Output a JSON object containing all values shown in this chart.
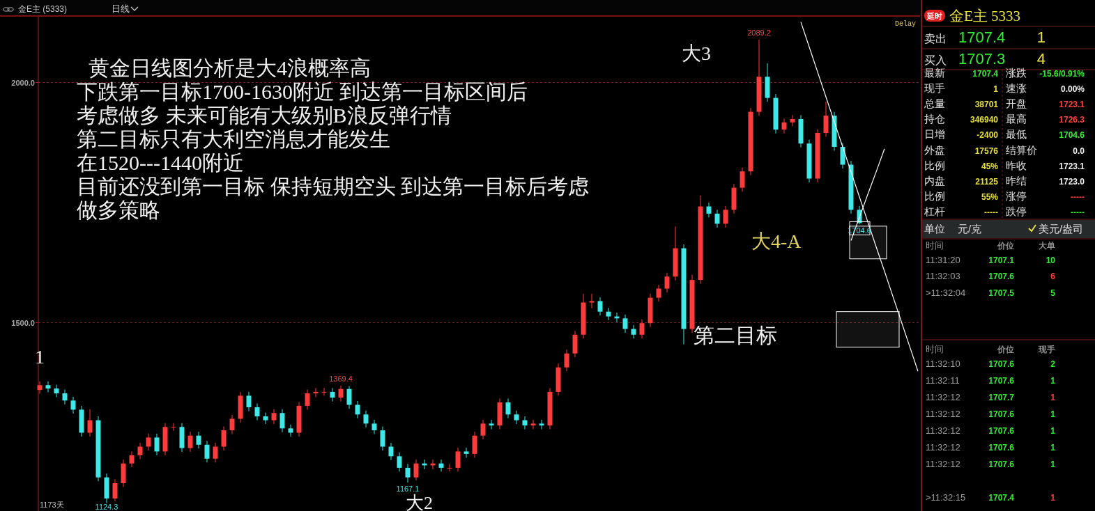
{
  "chart_data": [
    {
      "type": "candlestick",
      "title": "金E主 (5333)",
      "subtitle": "日线",
      "categories": [
        null,
        null,
        null,
        null,
        null,
        null,
        null,
        null,
        null,
        null,
        null,
        null,
        null,
        null,
        null,
        null,
        null,
        null,
        null,
        null,
        null,
        null,
        null,
        null,
        null,
        null,
        null,
        null,
        null,
        null,
        null,
        null,
        null,
        null,
        null,
        null,
        null,
        null,
        null,
        null,
        null,
        null,
        null,
        null,
        null,
        null,
        null,
        null,
        null,
        null,
        null,
        null,
        null,
        null,
        null,
        null,
        null,
        null,
        null,
        null,
        null,
        null,
        null,
        null,
        null,
        null,
        null,
        null,
        null,
        null,
        null,
        null,
        null,
        null,
        null,
        null,
        null,
        null,
        null,
        null,
        null,
        null,
        null,
        null,
        null,
        null,
        null,
        null,
        null,
        null,
        null,
        null,
        null,
        null,
        null,
        null,
        null,
        null,
        null,
        null,
        null,
        null,
        null,
        null,
        null,
        null
      ],
      "ylim": [
        1108,
        2137
      ],
      "yticks": [
        {
          "value": 1500,
          "label": "1500.0"
        },
        {
          "value": 2000,
          "label": "2000.0"
        }
      ],
      "grid": "y",
      "ohlc": [
        [
          1360,
          1378,
          1352,
          1370
        ],
        [
          1370,
          1378,
          1355,
          1363
        ],
        [
          1363,
          1371,
          1345,
          1353
        ],
        [
          1353,
          1361,
          1330,
          1338
        ],
        [
          1338,
          1346,
          1311,
          1319
        ],
        [
          1319,
          1327,
          1263,
          1271
        ],
        [
          1271,
          1320,
          1263,
          1297
        ],
        [
          1297,
          1305,
          1170,
          1178
        ],
        [
          1178,
          1186,
          1124.3,
          1134
        ],
        [
          1134,
          1174,
          1128,
          1166
        ],
        [
          1166,
          1215,
          1158,
          1207
        ],
        [
          1207,
          1232,
          1199,
          1224
        ],
        [
          1224,
          1250,
          1216,
          1242
        ],
        [
          1242,
          1269,
          1234,
          1261
        ],
        [
          1261,
          1269,
          1224,
          1232
        ],
        [
          1232,
          1291,
          1224,
          1283
        ],
        [
          1283,
          1291,
          1275,
          1283
        ],
        [
          1283,
          1291,
          1231,
          1239
        ],
        [
          1239,
          1273,
          1231,
          1265
        ],
        [
          1265,
          1273,
          1238,
          1246
        ],
        [
          1246,
          1254,
          1209,
          1217
        ],
        [
          1217,
          1250,
          1209,
          1242
        ],
        [
          1242,
          1284,
          1234,
          1276
        ],
        [
          1276,
          1308,
          1268,
          1300
        ],
        [
          1300,
          1356,
          1292,
          1348
        ],
        [
          1348,
          1356,
          1316,
          1324
        ],
        [
          1324,
          1332,
          1297,
          1305
        ],
        [
          1305,
          1313,
          1289,
          1297
        ],
        [
          1297,
          1320,
          1289,
          1312
        ],
        [
          1312,
          1320,
          1272,
          1280
        ],
        [
          1280,
          1288,
          1263,
          1271
        ],
        [
          1271,
          1335,
          1263,
          1327
        ],
        [
          1327,
          1361,
          1319,
          1353
        ],
        [
          1353,
          1364,
          1345,
          1356
        ],
        [
          1356,
          1364,
          1348,
          1356
        ],
        [
          1356,
          1364,
          1336,
          1344
        ],
        [
          1344,
          1369.4,
          1336,
          1362
        ],
        [
          1362,
          1368,
          1321,
          1329
        ],
        [
          1329,
          1337,
          1301,
          1309
        ],
        [
          1309,
          1317,
          1282,
          1290
        ],
        [
          1290,
          1298,
          1268,
          1276
        ],
        [
          1276,
          1284,
          1234,
          1242
        ],
        [
          1242,
          1250,
          1214,
          1222
        ],
        [
          1222,
          1230,
          1190,
          1198
        ],
        [
          1198,
          1206,
          1167.1,
          1178
        ],
        [
          1178,
          1215,
          1172,
          1207
        ],
        [
          1207,
          1215,
          1195,
          1203
        ],
        [
          1203,
          1215,
          1195,
          1207
        ],
        [
          1207,
          1215,
          1190,
          1198
        ],
        [
          1198,
          1206,
          1190,
          1198
        ],
        [
          1198,
          1240,
          1190,
          1232
        ],
        [
          1232,
          1240,
          1219,
          1227
        ],
        [
          1227,
          1273,
          1219,
          1265
        ],
        [
          1265,
          1298,
          1257,
          1290
        ],
        [
          1290,
          1298,
          1278,
          1286
        ],
        [
          1286,
          1342,
          1278,
          1334
        ],
        [
          1334,
          1342,
          1301,
          1309
        ],
        [
          1309,
          1317,
          1289,
          1297
        ],
        [
          1297,
          1305,
          1278,
          1286
        ],
        [
          1286,
          1298,
          1278,
          1290
        ],
        [
          1290,
          1298,
          1278,
          1286
        ],
        [
          1286,
          1364,
          1278,
          1356
        ],
        [
          1356,
          1415,
          1348,
          1407
        ],
        [
          1407,
          1444,
          1399,
          1436
        ],
        [
          1436,
          1483,
          1428,
          1475
        ],
        [
          1475,
          1560,
          1467,
          1542
        ],
        [
          1542,
          1560,
          1530,
          1545
        ],
        [
          1545,
          1553,
          1515,
          1523
        ],
        [
          1523,
          1531,
          1505,
          1513
        ],
        [
          1513,
          1521,
          1501,
          1509
        ],
        [
          1509,
          1517,
          1479,
          1487
        ],
        [
          1487,
          1495,
          1467,
          1475
        ],
        [
          1475,
          1507,
          1467,
          1499
        ],
        [
          1499,
          1560,
          1491,
          1552
        ],
        [
          1552,
          1579,
          1544,
          1571
        ],
        [
          1571,
          1604,
          1563,
          1596
        ],
        [
          1596,
          1700,
          1588,
          1655
        ],
        [
          1655,
          1663,
          1455,
          1487
        ],
        [
          1487,
          1600,
          1479,
          1589
        ],
        [
          1589,
          1765,
          1581,
          1742
        ],
        [
          1742,
          1750,
          1719,
          1727
        ],
        [
          1727,
          1735,
          1698,
          1706
        ],
        [
          1706,
          1743,
          1698,
          1735
        ],
        [
          1735,
          1789,
          1727,
          1781
        ],
        [
          1781,
          1823,
          1773,
          1815
        ],
        [
          1815,
          1947,
          1807,
          1939
        ],
        [
          1939,
          2089.2,
          1931,
          2012
        ],
        [
          2012,
          2040,
          1960,
          1968
        ],
        [
          1968,
          1976,
          1894,
          1902
        ],
        [
          1902,
          1925,
          1894,
          1917
        ],
        [
          1917,
          1932,
          1909,
          1924
        ],
        [
          1924,
          1932,
          1865,
          1873
        ],
        [
          1873,
          1881,
          1792,
          1800
        ],
        [
          1800,
          1903,
          1792,
          1895
        ],
        [
          1895,
          1960,
          1887,
          1931
        ],
        [
          1931,
          1939,
          1858,
          1866
        ],
        [
          1866,
          1874,
          1821,
          1829
        ],
        [
          1829,
          1837,
          1727,
          1735
        ],
        [
          1735,
          1743,
          1704.6,
          1707.4
        ],
        null,
        null,
        null,
        null,
        null,
        null,
        null
      ],
      "colors": [
        "#ff3b3b",
        "#3ee8e8",
        "#3ee8e8",
        "#3ee8e8",
        "#3ee8e8",
        "#3ee8e8",
        "#ff3b3b",
        "#3ee8e8",
        "#3ee8e8",
        "#ff3b3b",
        "#ff3b3b",
        "#ff3b3b",
        "#ff3b3b",
        "#ff3b3b",
        "#3ee8e8",
        "#ff3b3b",
        "#ff3b3b",
        "#3ee8e8",
        "#ff3b3b",
        "#3ee8e8",
        "#3ee8e8",
        "#ff3b3b",
        "#ff3b3b",
        "#ff3b3b",
        "#ff3b3b",
        "#3ee8e8",
        "#3ee8e8",
        "#3ee8e8",
        "#ff3b3b",
        "#3ee8e8",
        "#3ee8e8",
        "#ff3b3b",
        "#ff3b3b",
        "#ff3b3b",
        "#ff3b3b",
        "#3ee8e8",
        "#ff3b3b",
        "#3ee8e8",
        "#3ee8e8",
        "#3ee8e8",
        "#3ee8e8",
        "#3ee8e8",
        "#3ee8e8",
        "#3ee8e8",
        "#3ee8e8",
        "#ff3b3b",
        "#3ee8e8",
        "#ff3b3b",
        "#3ee8e8",
        "#ff3b3b",
        "#ff3b3b",
        "#3ee8e8",
        "#ff3b3b",
        "#ff3b3b",
        "#3ee8e8",
        "#ff3b3b",
        "#3ee8e8",
        "#3ee8e8",
        "#3ee8e8",
        "#ff3b3b",
        "#3ee8e8",
        "#ff3b3b",
        "#ff3b3b",
        "#ff3b3b",
        "#ff3b3b",
        "#ff3b3b",
        "#ff3b3b",
        "#3ee8e8",
        "#3ee8e8",
        "#3ee8e8",
        "#3ee8e8",
        "#3ee8e8",
        "#ff3b3b",
        "#ff3b3b",
        "#ff3b3b",
        "#ff3b3b",
        "#ff3b3b",
        "#3ee8e8",
        "#ff3b3b",
        "#ff3b3b",
        "#3ee8e8",
        "#3ee8e8",
        "#ff3b3b",
        "#ff3b3b",
        "#ff3b3b",
        "#ff3b3b",
        "#ff3b3b",
        "#3ee8e8",
        "#3ee8e8",
        "#ff3b3b",
        "#ff3b3b",
        "#3ee8e8",
        "#3ee8e8",
        "#ff3b3b",
        "#ff3b3b",
        "#3ee8e8",
        "#3ee8e8",
        "#3ee8e8",
        "#3ee8e8",
        null,
        null,
        null,
        null,
        null,
        null,
        null
      ],
      "series": [
        {
          "type": "line",
          "color": "#ffffff",
          "values": [
            null,
            null,
            null,
            null,
            null,
            null,
            null,
            null,
            null,
            null,
            null,
            null,
            null,
            null,
            null,
            null,
            null,
            null,
            null,
            null,
            null,
            null,
            null,
            null,
            null,
            null,
            null,
            null,
            null,
            null,
            null,
            null,
            null,
            null,
            null,
            null,
            null,
            null,
            null,
            null,
            null,
            null,
            null,
            null,
            null,
            null,
            null,
            null,
            null,
            null,
            null,
            null,
            null,
            null,
            null,
            null,
            null,
            null,
            null,
            null,
            null,
            null,
            null,
            null,
            null,
            null,
            null,
            null,
            null,
            null,
            null,
            null,
            null,
            null,
            null,
            null,
            null,
            null,
            null,
            null,
            null,
            null,
            null,
            null,
            null,
            null,
            null,
            null,
            null,
            null,
            null,
            2126,
            2074,
            2022,
            1970,
            1918,
            1866,
            1814,
            1762,
            1710,
            1658,
            1607,
            1555,
            1503,
            1451,
            1399
          ]
        },
        {
          "type": "line",
          "color": "#ffffff",
          "values": [
            null,
            null,
            null,
            null,
            null,
            null,
            null,
            null,
            null,
            null,
            null,
            null,
            null,
            null,
            null,
            null,
            null,
            null,
            null,
            null,
            null,
            null,
            null,
            null,
            null,
            null,
            null,
            null,
            null,
            null,
            null,
            null,
            null,
            null,
            null,
            null,
            null,
            null,
            null,
            null,
            null,
            null,
            null,
            null,
            null,
            null,
            null,
            null,
            null,
            null,
            null,
            null,
            null,
            null,
            null,
            null,
            null,
            null,
            null,
            null,
            null,
            null,
            null,
            null,
            null,
            null,
            null,
            null,
            null,
            null,
            null,
            null,
            null,
            null,
            null,
            null,
            null,
            null,
            null,
            null,
            null,
            null,
            null,
            null,
            null,
            null,
            null,
            null,
            null,
            null,
            null,
            null,
            null,
            null,
            null,
            null,
            null,
            1671,
            1719,
            1767,
            1814,
            1862,
            null,
            null,
            null,
            null
          ]
        }
      ],
      "bands": [
        {
          "axis": "y",
          "from": 1633,
          "to": 1701,
          "color": "#ffffff"
        },
        {
          "axis": "y",
          "from": 1449,
          "to": 1523,
          "color": "#ffffff"
        }
      ],
      "annotations": [
        "黄金日线图分析是大4浪概率高",
        "下跌第一目标1700-1630附近 到达第一目标区间后",
        "考虑做多 未来可能有大级别B浪反弹行情",
        "第二目标只有大利空消息才能发生",
        "在1520---1440附近",
        "目前还没到第一目标 保持短期空头 到达第一目标后考虑",
        "做多策略",
        "1",
        "大2",
        "大3",
        "大4-A",
        "第二目标",
        "1173天",
        "Delay",
        {
          "text": "2089.2",
          "y": 2089.2
        },
        {
          "text": "1369.4",
          "y": 1369.4
        },
        {
          "text": "1167.1",
          "y": 1167.1
        },
        {
          "text": "1124.3",
          "y": 1124.3
        },
        {
          "text": "1704.6",
          "y": 1704.6
        }
      ]
    },
    {
      "type": "other",
      "title": "金E主 5333",
      "annotations": [
        "延时",
        "卖出",
        "1707.4",
        "1",
        "买入",
        "1707.3",
        "4",
        "最新",
        "1707.4",
        "涨跌",
        "-15.6/0.91%",
        "现手",
        "1",
        "速涨",
        "0.00%",
        "总量",
        "38701",
        "开盘",
        "1723.1",
        "持仓",
        "346940",
        "最高",
        "1726.3",
        "日增",
        "-2400",
        "最低",
        "1704.6",
        "外盘",
        "17576",
        "结算价",
        "0.0",
        "比例",
        "45%",
        "昨收",
        "1723.1",
        "内盘",
        "21125",
        "昨结",
        "1723.0",
        "比例",
        "55%",
        "涨停",
        "-----",
        "杠杆",
        "-----",
        "跌停",
        "-----",
        "单位",
        "元/克",
        "美元/盎司",
        "时间",
        "价位",
        "大单",
        "11:31:20",
        "1707.1",
        "10",
        "11:32:03",
        "1707.6",
        "6",
        ">11:32:04",
        "1707.5",
        "5",
        "时间",
        "价位",
        "现手",
        "11:32:10",
        "1707.6",
        "2",
        "11:32:11",
        "1707.6",
        "1",
        "11:32:12",
        "1707.7",
        "1",
        "11:32:12",
        "1707.6",
        "1",
        "11:32:12",
        "1707.6",
        "1",
        "11:32:12",
        "1707.6",
        "1",
        "11:32:12",
        "1707.6",
        "1",
        ">11:32:15",
        "1707.4",
        "1"
      ],
      "colors": [
        "#ffffff",
        "#e0e0e0",
        "#33ee33",
        "#e8e040",
        "#e0e0e0",
        "#33ee33",
        "#e8e040",
        "#e0e0e0",
        "#33ee33",
        "#e0e0e0",
        "#33ee33",
        "#e0e0e0",
        "#e8e040",
        "#e0e0e0",
        "#f0f0f0",
        "#e0e0e0",
        "#e8e040",
        "#e0e0e0",
        "#ff4040",
        "#e0e0e0",
        "#e8e040",
        "#e0e0e0",
        "#ff4040",
        "#e0e0e0",
        "#e8e040",
        "#e0e0e0",
        "#33ee33",
        "#e0e0e0",
        "#e8e040",
        "#e0e0e0",
        "#f0f0f0",
        "#e0e0e0",
        "#e8e040",
        "#e0e0e0",
        "#f0f0f0",
        "#e0e0e0",
        "#e8e040",
        "#e0e0e0",
        "#f0f0f0",
        "#e0e0e0",
        "#e8e040",
        "#e0e0e0",
        "#ff4040",
        "#e0e0e0",
        "#e8e040",
        "#e0e0e0",
        "#33ee33",
        "#e0e0e0",
        "#e0e0e0",
        "#e0e0e0",
        "#909090",
        "#909090",
        "#909090",
        "#a0a0a0",
        "#33ee33",
        "#33ee33",
        "#a0a0a0",
        "#33ee33",
        "#ff4040",
        "#a0a0a0",
        "#33ee33",
        "#33ee33",
        "#909090",
        "#909090",
        "#909090",
        "#a0a0a0",
        "#33ee33",
        "#33ee33",
        "#a0a0a0",
        "#33ee33",
        "#33ee33",
        "#a0a0a0",
        "#33ee33",
        "#ff4040",
        "#a0a0a0",
        "#33ee33",
        "#33ee33",
        "#a0a0a0",
        "#33ee33",
        "#33ee33",
        "#a0a0a0",
        "#33ee33",
        "#33ee33",
        "#a0a0a0",
        "#33ee33",
        "#33ee33",
        "#a0a0a0",
        "#33ee33",
        "#ff4040"
      ]
    }
  ]
}
